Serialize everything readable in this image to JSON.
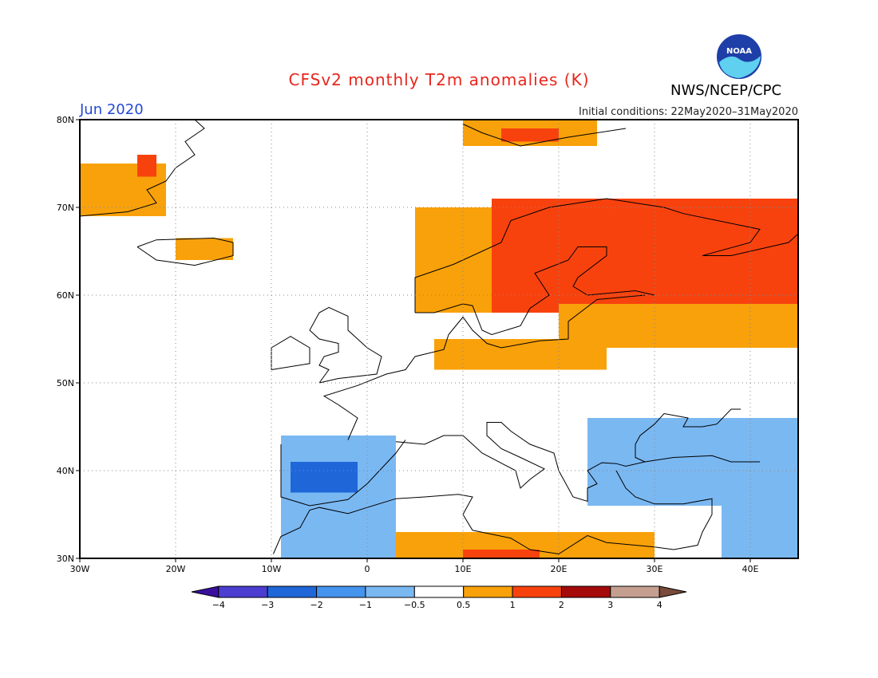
{
  "title": "CFSv2 monthly T2m anomalies (K)",
  "agency": "NWS/NCEP/CPC",
  "logo_text": "NOAA",
  "month": "Jun 2020",
  "initial_conditions": "Initial conditions: 22May2020–31May2020",
  "map": {
    "lon_range": [
      -30,
      45
    ],
    "lat_range": [
      30,
      80
    ],
    "lon_ticks": [
      {
        "v": -30,
        "label": "30W"
      },
      {
        "v": -20,
        "label": "20W"
      },
      {
        "v": -10,
        "label": "10W"
      },
      {
        "v": 0,
        "label": "0"
      },
      {
        "v": 10,
        "label": "10E"
      },
      {
        "v": 20,
        "label": "20E"
      },
      {
        "v": 30,
        "label": "30E"
      },
      {
        "v": 40,
        "label": "40E"
      }
    ],
    "lat_ticks": [
      {
        "v": 30,
        "label": "30N"
      },
      {
        "v": 40,
        "label": "40N"
      },
      {
        "v": 50,
        "label": "50N"
      },
      {
        "v": 60,
        "label": "60N"
      },
      {
        "v": 70,
        "label": "70N"
      },
      {
        "v": 80,
        "label": "80N"
      }
    ],
    "grid": true,
    "anomaly_regions": [
      {
        "name": "Greenland",
        "level": 1,
        "lon": [
          -30,
          -21
        ],
        "lat": [
          69,
          75
        ]
      },
      {
        "name": "Greenland east coast",
        "level": 2,
        "lon": [
          -24,
          -22
        ],
        "lat": [
          73.5,
          76
        ]
      },
      {
        "name": "Iceland",
        "level": 1,
        "lon": [
          -20,
          -14
        ],
        "lat": [
          64,
          66.5
        ]
      },
      {
        "name": "Svalbard",
        "level": 1,
        "lon": [
          10,
          24
        ],
        "lat": [
          77,
          80
        ]
      },
      {
        "name": "Svalbard north",
        "level": 2,
        "lon": [
          14,
          20
        ],
        "lat": [
          77.5,
          79
        ]
      },
      {
        "name": "Norway coast",
        "level": 1,
        "lon": [
          5,
          16
        ],
        "lat": [
          58,
          70
        ]
      },
      {
        "name": "Fennoscandia and NW Russia",
        "level": 2,
        "lon": [
          13,
          45
        ],
        "lat": [
          58,
          71
        ]
      },
      {
        "name": "Baltic and Russia",
        "level": 1,
        "lon": [
          20,
          45
        ],
        "lat": [
          54,
          59
        ]
      },
      {
        "name": "North Germany and Poland",
        "level": 1,
        "lon": [
          7,
          25
        ],
        "lat": [
          51.5,
          55
        ]
      },
      {
        "name": "North Africa and Mediterranean",
        "level": 1,
        "lon": [
          0,
          30
        ],
        "lat": [
          30,
          33
        ]
      },
      {
        "name": "Libya coast",
        "level": 2,
        "lon": [
          10,
          18
        ],
        "lat": [
          30,
          31
        ]
      },
      {
        "name": "Iberia and Morocco",
        "level": -1,
        "lon": [
          -9,
          3
        ],
        "lat": [
          30,
          44
        ]
      },
      {
        "name": "Central Iberia",
        "level": -2,
        "lon": [
          -8,
          -1
        ],
        "lat": [
          37.5,
          41
        ]
      },
      {
        "name": "Balkans and Turkey",
        "level": -1,
        "lon": [
          23,
          45
        ],
        "lat": [
          36,
          46
        ]
      },
      {
        "name": "Middle East",
        "level": -1,
        "lon": [
          37,
          45
        ],
        "lat": [
          30,
          37
        ]
      }
    ]
  },
  "legend": {
    "ticks": [
      "−4",
      "−3",
      "−2",
      "−1",
      "−0.5",
      "0.5",
      "1",
      "2",
      "3",
      "4"
    ],
    "colors": [
      "#3a0e9e",
      "#4b3ed1",
      "#1f66d8",
      "#4493ec",
      "#7ab8f2",
      "#ffffff",
      "#f9a10a",
      "#f8420e",
      "#a40a0a",
      "#c49f90",
      "#7a4a3a"
    ]
  }
}
